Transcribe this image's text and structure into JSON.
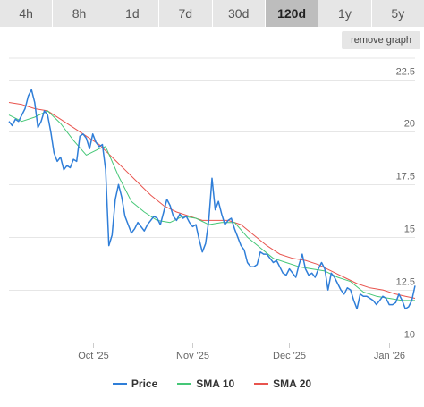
{
  "range_tabs": [
    {
      "label": "4h",
      "active": false
    },
    {
      "label": "8h",
      "active": false
    },
    {
      "label": "1d",
      "active": false
    },
    {
      "label": "7d",
      "active": false
    },
    {
      "label": "30d",
      "active": false
    },
    {
      "label": "120d",
      "active": true
    },
    {
      "label": "1y",
      "active": false
    },
    {
      "label": "5y",
      "active": false
    }
  ],
  "remove_graph_label": "remove graph",
  "colors": {
    "price": "#2f7ed8",
    "sma10": "#45c777",
    "sma20": "#e8544e",
    "grid": "#e6e6e6",
    "axis_text": "#666666"
  },
  "chart_data": {
    "type": "line",
    "title": "",
    "xlabel": "",
    "ylabel": "",
    "ylim": [
      10,
      23.5
    ],
    "xlim": [
      "2025-09-05",
      "2026-01-09"
    ],
    "y_ticks": [
      10,
      12.5,
      15,
      17.5,
      20,
      22.5
    ],
    "y_tick_labels": [
      "10",
      "12.5",
      "15",
      "17.5",
      "20",
      "22.5"
    ],
    "x_ticks": [
      {
        "date": "2025-10-01",
        "label": "Oct '25"
      },
      {
        "date": "2025-11-01",
        "label": "Nov '25"
      },
      {
        "date": "2025-12-01",
        "label": "Dec '25"
      },
      {
        "date": "2026-01-01",
        "label": "Jan '26"
      }
    ],
    "grid": true,
    "legend_position": "bottom",
    "series": [
      {
        "name": "Price",
        "color": "#2f7ed8",
        "points": [
          [
            "2025-09-05",
            20.5
          ],
          [
            "2025-09-06",
            20.3
          ],
          [
            "2025-09-07",
            20.6
          ],
          [
            "2025-09-08",
            20.5
          ],
          [
            "2025-09-09",
            20.8
          ],
          [
            "2025-09-10",
            21.1
          ],
          [
            "2025-09-11",
            21.7
          ],
          [
            "2025-09-12",
            22.0
          ],
          [
            "2025-09-13",
            21.4
          ],
          [
            "2025-09-14",
            20.2
          ],
          [
            "2025-09-15",
            20.5
          ],
          [
            "2025-09-16",
            21.0
          ],
          [
            "2025-09-17",
            20.8
          ],
          [
            "2025-09-18",
            20.0
          ],
          [
            "2025-09-19",
            19.0
          ],
          [
            "2025-09-20",
            18.6
          ],
          [
            "2025-09-21",
            18.8
          ],
          [
            "2025-09-22",
            18.2
          ],
          [
            "2025-09-23",
            18.4
          ],
          [
            "2025-09-24",
            18.3
          ],
          [
            "2025-09-25",
            18.7
          ],
          [
            "2025-09-26",
            18.6
          ],
          [
            "2025-09-27",
            19.8
          ],
          [
            "2025-09-28",
            19.9
          ],
          [
            "2025-09-29",
            19.7
          ],
          [
            "2025-09-30",
            19.2
          ],
          [
            "2025-10-01",
            19.9
          ],
          [
            "2025-10-02",
            19.5
          ],
          [
            "2025-10-03",
            19.3
          ],
          [
            "2025-10-04",
            19.4
          ],
          [
            "2025-10-05",
            18.2
          ],
          [
            "2025-10-06",
            14.6
          ],
          [
            "2025-10-07",
            15.1
          ],
          [
            "2025-10-08",
            16.8
          ],
          [
            "2025-10-09",
            17.5
          ],
          [
            "2025-10-10",
            16.9
          ],
          [
            "2025-10-11",
            16.0
          ],
          [
            "2025-10-12",
            15.6
          ],
          [
            "2025-10-13",
            15.2
          ],
          [
            "2025-10-14",
            15.4
          ],
          [
            "2025-10-15",
            15.7
          ],
          [
            "2025-10-16",
            15.5
          ],
          [
            "2025-10-17",
            15.3
          ],
          [
            "2025-10-18",
            15.6
          ],
          [
            "2025-10-19",
            15.8
          ],
          [
            "2025-10-20",
            16.0
          ],
          [
            "2025-10-21",
            15.9
          ],
          [
            "2025-10-22",
            15.6
          ],
          [
            "2025-10-23",
            16.2
          ],
          [
            "2025-10-24",
            16.8
          ],
          [
            "2025-10-25",
            16.5
          ],
          [
            "2025-10-26",
            16.0
          ],
          [
            "2025-10-27",
            15.8
          ],
          [
            "2025-10-28",
            16.1
          ],
          [
            "2025-10-29",
            15.9
          ],
          [
            "2025-10-30",
            16.0
          ],
          [
            "2025-10-31",
            15.7
          ],
          [
            "2025-11-01",
            15.5
          ],
          [
            "2025-11-02",
            15.6
          ],
          [
            "2025-11-03",
            14.9
          ],
          [
            "2025-11-04",
            14.3
          ],
          [
            "2025-11-05",
            14.7
          ],
          [
            "2025-11-06",
            15.8
          ],
          [
            "2025-11-07",
            17.8
          ],
          [
            "2025-11-08",
            16.3
          ],
          [
            "2025-11-09",
            16.7
          ],
          [
            "2025-11-10",
            16.1
          ],
          [
            "2025-11-11",
            15.6
          ],
          [
            "2025-11-12",
            15.8
          ],
          [
            "2025-11-13",
            15.9
          ],
          [
            "2025-11-14",
            15.4
          ],
          [
            "2025-11-15",
            15.0
          ],
          [
            "2025-11-16",
            14.6
          ],
          [
            "2025-11-17",
            14.4
          ],
          [
            "2025-11-18",
            13.8
          ],
          [
            "2025-11-19",
            13.6
          ],
          [
            "2025-11-20",
            13.6
          ],
          [
            "2025-11-21",
            13.7
          ],
          [
            "2025-11-22",
            14.3
          ],
          [
            "2025-11-23",
            14.2
          ],
          [
            "2025-11-24",
            14.2
          ],
          [
            "2025-11-25",
            14.0
          ],
          [
            "2025-11-26",
            13.8
          ],
          [
            "2025-11-27",
            13.9
          ],
          [
            "2025-11-28",
            13.6
          ],
          [
            "2025-11-29",
            13.3
          ],
          [
            "2025-11-30",
            13.2
          ],
          [
            "2025-12-01",
            13.5
          ],
          [
            "2025-12-02",
            13.3
          ],
          [
            "2025-12-03",
            13.1
          ],
          [
            "2025-12-04",
            13.7
          ],
          [
            "2025-12-05",
            14.2
          ],
          [
            "2025-12-06",
            13.5
          ],
          [
            "2025-12-07",
            13.2
          ],
          [
            "2025-12-08",
            13.3
          ],
          [
            "2025-12-09",
            13.1
          ],
          [
            "2025-12-10",
            13.5
          ],
          [
            "2025-12-11",
            13.8
          ],
          [
            "2025-12-12",
            13.5
          ],
          [
            "2025-12-13",
            12.5
          ],
          [
            "2025-12-14",
            13.3
          ],
          [
            "2025-12-15",
            13.1
          ],
          [
            "2025-12-16",
            12.8
          ],
          [
            "2025-12-17",
            12.5
          ],
          [
            "2025-12-18",
            12.3
          ],
          [
            "2025-12-19",
            12.6
          ],
          [
            "2025-12-20",
            12.5
          ],
          [
            "2025-12-21",
            12.0
          ],
          [
            "2025-12-22",
            11.6
          ],
          [
            "2025-12-23",
            12.3
          ],
          [
            "2025-12-24",
            12.2
          ],
          [
            "2025-12-25",
            12.2
          ],
          [
            "2025-12-26",
            12.1
          ],
          [
            "2025-12-27",
            12.0
          ],
          [
            "2025-12-28",
            11.8
          ],
          [
            "2025-12-29",
            12.0
          ],
          [
            "2025-12-30",
            12.2
          ],
          [
            "2025-12-31",
            12.1
          ],
          [
            "2026-01-01",
            11.8
          ],
          [
            "2026-01-02",
            11.8
          ],
          [
            "2026-01-03",
            11.9
          ],
          [
            "2026-01-04",
            12.3
          ],
          [
            "2026-01-05",
            12.0
          ],
          [
            "2026-01-06",
            11.6
          ],
          [
            "2026-01-07",
            11.7
          ],
          [
            "2026-01-08",
            12.0
          ],
          [
            "2026-01-09",
            12.7
          ]
        ]
      },
      {
        "name": "SMA 10",
        "color": "#45c777",
        "points": [
          [
            "2025-09-05",
            20.8
          ],
          [
            "2025-09-09",
            20.5
          ],
          [
            "2025-09-13",
            20.7
          ],
          [
            "2025-09-17",
            21.0
          ],
          [
            "2025-09-21",
            20.4
          ],
          [
            "2025-09-25",
            19.6
          ],
          [
            "2025-09-29",
            18.9
          ],
          [
            "2025-10-03",
            19.2
          ],
          [
            "2025-10-05",
            19.3
          ],
          [
            "2025-10-09",
            17.9
          ],
          [
            "2025-10-13",
            16.7
          ],
          [
            "2025-10-17",
            16.2
          ],
          [
            "2025-10-21",
            15.8
          ],
          [
            "2025-10-25",
            15.7
          ],
          [
            "2025-10-29",
            16.0
          ],
          [
            "2025-11-02",
            15.9
          ],
          [
            "2025-11-06",
            15.6
          ],
          [
            "2025-11-10",
            15.7
          ],
          [
            "2025-11-14",
            15.7
          ],
          [
            "2025-11-18",
            15.0
          ],
          [
            "2025-11-22",
            14.5
          ],
          [
            "2025-11-26",
            14.0
          ],
          [
            "2025-11-30",
            13.8
          ],
          [
            "2025-12-04",
            13.6
          ],
          [
            "2025-12-08",
            13.5
          ],
          [
            "2025-12-12",
            13.4
          ],
          [
            "2025-12-16",
            13.1
          ],
          [
            "2025-12-20",
            12.9
          ],
          [
            "2025-12-24",
            12.4
          ],
          [
            "2025-12-28",
            12.2
          ],
          [
            "2026-01-01",
            12.1
          ],
          [
            "2026-01-05",
            12.0
          ],
          [
            "2026-01-09",
            12.0
          ]
        ]
      },
      {
        "name": "SMA 20",
        "color": "#e8544e",
        "points": [
          [
            "2025-09-05",
            21.4
          ],
          [
            "2025-09-09",
            21.3
          ],
          [
            "2025-09-13",
            21.1
          ],
          [
            "2025-09-17",
            21.0
          ],
          [
            "2025-09-21",
            20.6
          ],
          [
            "2025-09-25",
            20.2
          ],
          [
            "2025-09-29",
            19.8
          ],
          [
            "2025-10-03",
            19.4
          ],
          [
            "2025-10-07",
            18.8
          ],
          [
            "2025-10-11",
            18.2
          ],
          [
            "2025-10-15",
            17.6
          ],
          [
            "2025-10-19",
            17.0
          ],
          [
            "2025-10-23",
            16.5
          ],
          [
            "2025-10-27",
            16.2
          ],
          [
            "2025-10-31",
            16.0
          ],
          [
            "2025-11-04",
            15.8
          ],
          [
            "2025-11-08",
            15.8
          ],
          [
            "2025-11-12",
            15.8
          ],
          [
            "2025-11-16",
            15.6
          ],
          [
            "2025-11-20",
            15.1
          ],
          [
            "2025-11-24",
            14.6
          ],
          [
            "2025-11-28",
            14.2
          ],
          [
            "2025-12-02",
            14.0
          ],
          [
            "2025-12-06",
            13.9
          ],
          [
            "2025-12-10",
            13.7
          ],
          [
            "2025-12-14",
            13.4
          ],
          [
            "2025-12-18",
            13.1
          ],
          [
            "2025-12-22",
            12.8
          ],
          [
            "2025-12-26",
            12.6
          ],
          [
            "2025-12-30",
            12.5
          ],
          [
            "2026-01-03",
            12.3
          ],
          [
            "2026-01-06",
            12.2
          ],
          [
            "2026-01-09",
            12.1
          ]
        ]
      }
    ]
  }
}
